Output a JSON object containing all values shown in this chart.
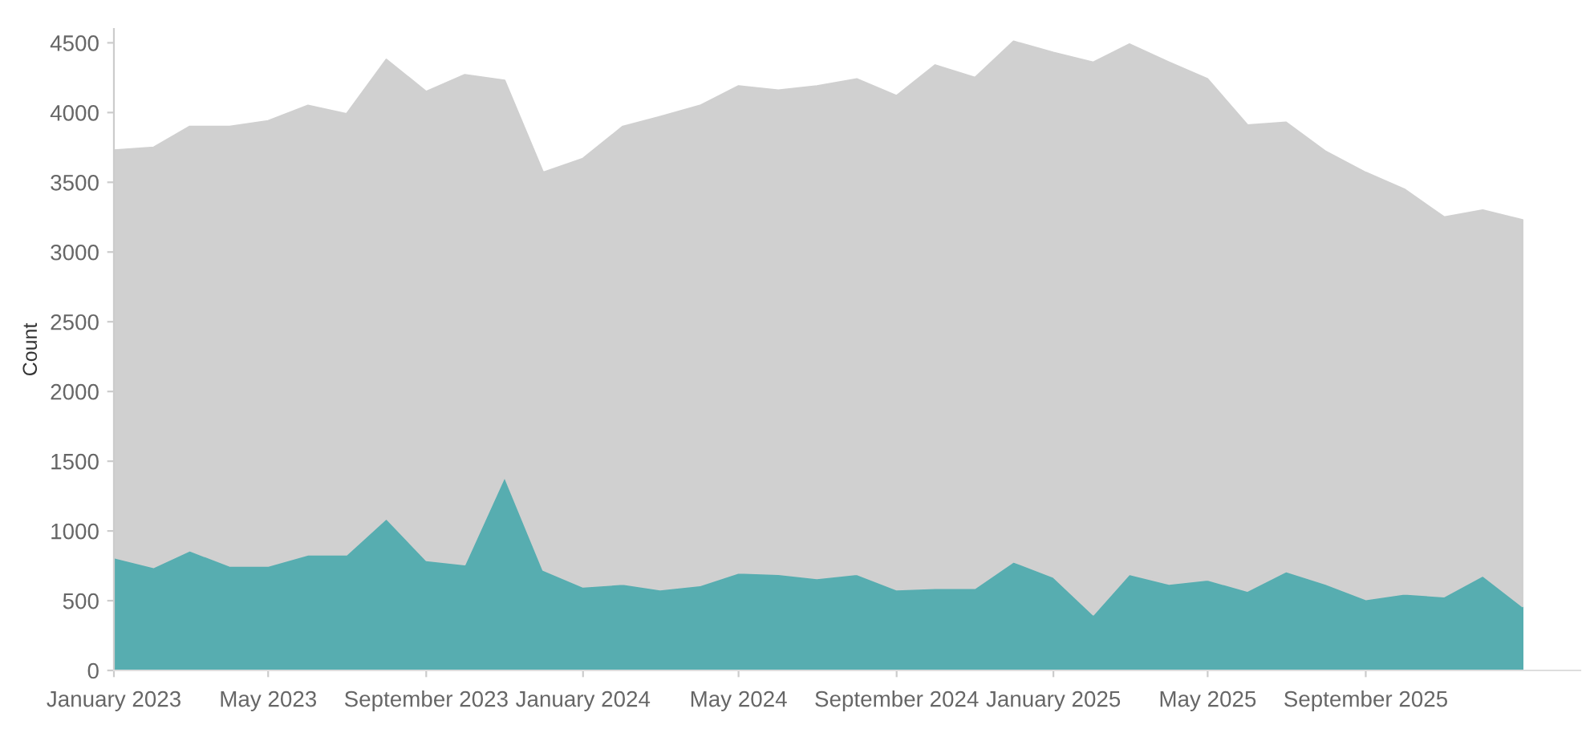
{
  "chart_data": {
    "type": "area",
    "ylabel": "Count",
    "x": [
      "2023-01",
      "2023-02",
      "2023-03",
      "2023-04",
      "2023-05",
      "2023-06",
      "2023-07",
      "2023-08",
      "2023-09",
      "2023-10",
      "2023-11",
      "2023-12",
      "2024-01",
      "2024-02",
      "2024-03",
      "2024-04",
      "2024-05",
      "2024-06",
      "2024-07",
      "2024-08",
      "2024-09",
      "2024-10",
      "2024-11",
      "2024-12",
      "2025-01",
      "2025-02",
      "2025-03",
      "2025-04",
      "2025-05",
      "2025-06",
      "2025-07",
      "2025-08",
      "2025-09",
      "2025-10",
      "2025-11",
      "2025-12",
      "2026-01"
    ],
    "series": [
      {
        "color": "#57adb0",
        "values": [
          810,
          740,
          860,
          750,
          750,
          830,
          830,
          1090,
          790,
          760,
          1390,
          720,
          600,
          620,
          580,
          610,
          700,
          690,
          660,
          690,
          580,
          590,
          590,
          780,
          670,
          400,
          690,
          620,
          650,
          570,
          710,
          620,
          510,
          550,
          530,
          680,
          460
        ]
      },
      {
        "color": "#d0d0d0",
        "values": [
          2920,
          3010,
          3040,
          3150,
          3190,
          3220,
          3160,
          3290,
          3360,
          3510,
          2840,
          2850,
          3070,
          3280,
          3390,
          3440,
          3490,
          3470,
          3530,
          3550,
          3540,
          3750,
          3660,
          3730,
          3760,
          3960,
          3800,
          3740,
          3590,
          3340,
          3220,
          3100,
          3060,
          2900,
          2720,
          2620,
          2770
        ]
      }
    ],
    "xlim": [
      "2023-01-01",
      "2026-02-15"
    ],
    "xticks": [
      {
        "value": "2023-01",
        "label": "January 2023"
      },
      {
        "value": "2023-05",
        "label": "May 2023"
      },
      {
        "value": "2023-09",
        "label": "September 2023"
      },
      {
        "value": "2024-01",
        "label": "January 2024"
      },
      {
        "value": "2024-05",
        "label": "May 2024"
      },
      {
        "value": "2024-09",
        "label": "September 2024"
      },
      {
        "value": "2025-01",
        "label": "January 2025"
      },
      {
        "value": "2025-05",
        "label": "May 2025"
      },
      {
        "value": "2025-09",
        "label": "September 2025"
      }
    ],
    "ylim": [
      0,
      4600
    ],
    "yticks": [
      0,
      500,
      1000,
      1500,
      2000,
      2500,
      3000,
      3500,
      4000,
      4500
    ],
    "stacked": true,
    "grid": false,
    "legend": false
  }
}
